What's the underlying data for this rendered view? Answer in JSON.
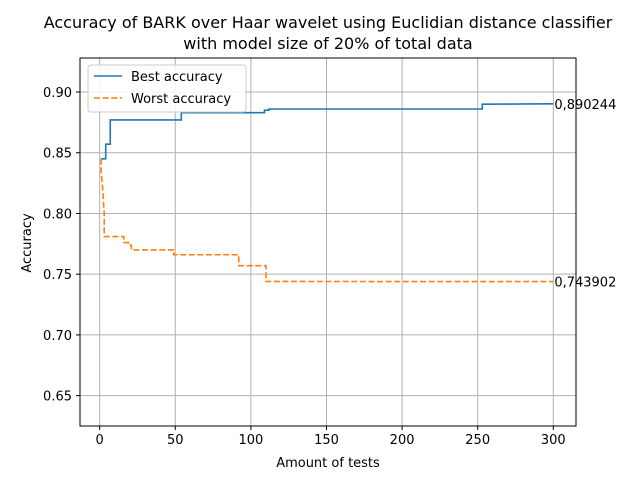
{
  "chart_data": {
    "type": "line",
    "title": [
      "Accuracy of BARK over Haar wavelet using Euclidian distance classifier",
      "with model size of 20% of total data"
    ],
    "xlabel": "Amount of tests",
    "ylabel": "Accuracy",
    "xlim": [
      -13,
      315
    ],
    "ylim": [
      0.625,
      0.928
    ],
    "xticks": [
      0,
      50,
      100,
      150,
      200,
      250,
      300
    ],
    "xtick_labels": [
      "0",
      "50",
      "100",
      "150",
      "200",
      "250",
      "300"
    ],
    "yticks": [
      0.65,
      0.7,
      0.75,
      0.8,
      0.85,
      0.9
    ],
    "ytick_labels": [
      "0.65",
      "0.70",
      "0.75",
      "0.80",
      "0.85",
      "0.90"
    ],
    "grid": true,
    "legend_position": "top-left",
    "series": [
      {
        "name": "Best accuracy",
        "color": "#1f77b4",
        "style": "solid",
        "points": [
          [
            1,
            0.845
          ],
          [
            4,
            0.845
          ],
          [
            4,
            0.857
          ],
          [
            7,
            0.857
          ],
          [
            7,
            0.877
          ],
          [
            54,
            0.877
          ],
          [
            54,
            0.883
          ],
          [
            109,
            0.883
          ],
          [
            109,
            0.885
          ],
          [
            112,
            0.885
          ],
          [
            112,
            0.886
          ],
          [
            253,
            0.886
          ],
          [
            253,
            0.89
          ],
          [
            300,
            0.890244
          ]
        ],
        "end_label": "0,890244"
      },
      {
        "name": "Worst accuracy",
        "color": "#ff7f0e",
        "style": "dashed",
        "points": [
          [
            1,
            0.845
          ],
          [
            1,
            0.835
          ],
          [
            2,
            0.82
          ],
          [
            3,
            0.8
          ],
          [
            3,
            0.781
          ],
          [
            16,
            0.781
          ],
          [
            16,
            0.776
          ],
          [
            19,
            0.776
          ],
          [
            19,
            0.774
          ],
          [
            21,
            0.774
          ],
          [
            21,
            0.77
          ],
          [
            49,
            0.77
          ],
          [
            49,
            0.766
          ],
          [
            92,
            0.766
          ],
          [
            92,
            0.757
          ],
          [
            110,
            0.757
          ],
          [
            110,
            0.744
          ],
          [
            300,
            0.743902
          ]
        ],
        "end_label": "0,743902"
      }
    ]
  }
}
